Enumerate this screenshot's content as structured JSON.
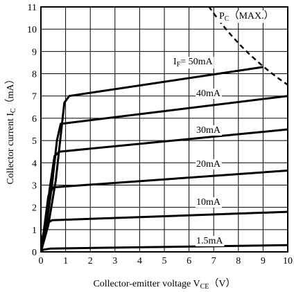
{
  "chart_data": {
    "type": "line",
    "xlabel": {
      "main": "Collector-emitter voltage V",
      "sub": "CE",
      "unit": "（V）"
    },
    "ylabel": {
      "main": "Collector current I",
      "sub": "C",
      "unit": "（mA）"
    },
    "xlim": [
      0,
      10
    ],
    "ylim": [
      0,
      11
    ],
    "xticks": [
      "0",
      "1",
      "2",
      "3",
      "4",
      "5",
      "6",
      "7",
      "8",
      "9",
      "10"
    ],
    "yticks": [
      "0",
      "1",
      "2",
      "3",
      "4",
      "5",
      "6",
      "7",
      "8",
      "9",
      "10",
      "11"
    ],
    "grid": true,
    "series": [
      {
        "name": "I_F = 50mA",
        "label_main": "I",
        "label_sub": "F",
        "label_rest": "= 50mA",
        "points": [
          [
            0,
            0
          ],
          [
            0.3,
            1.2
          ],
          [
            0.6,
            3.2
          ],
          [
            0.8,
            5.2
          ],
          [
            0.95,
            6.7
          ],
          [
            1.15,
            7.0
          ],
          [
            9,
            8.3
          ]
        ]
      },
      {
        "name": "40mA",
        "label_main": "40mA",
        "points": [
          [
            0,
            0
          ],
          [
            0.2,
            1.0
          ],
          [
            0.45,
            3.0
          ],
          [
            0.65,
            5.0
          ],
          [
            0.8,
            5.75
          ],
          [
            10,
            7.0
          ]
        ]
      },
      {
        "name": "30mA",
        "label_main": "30mA",
        "points": [
          [
            0,
            0
          ],
          [
            0.15,
            1.0
          ],
          [
            0.35,
            2.8
          ],
          [
            0.55,
            4.3
          ],
          [
            0.75,
            4.5
          ],
          [
            10,
            5.5
          ]
        ]
      },
      {
        "name": "20mA",
        "label_main": "20mA",
        "points": [
          [
            0,
            0
          ],
          [
            0.1,
            0.8
          ],
          [
            0.3,
            2.5
          ],
          [
            0.5,
            2.9
          ],
          [
            10,
            3.65
          ]
        ]
      },
      {
        "name": "10mA",
        "label_main": "10mA",
        "points": [
          [
            0,
            0
          ],
          [
            0.05,
            0.6
          ],
          [
            0.2,
            1.25
          ],
          [
            0.45,
            1.42
          ],
          [
            10,
            1.8
          ]
        ]
      },
      {
        "name": "1.5mA",
        "label_main": "1.5mA",
        "points": [
          [
            0,
            0
          ],
          [
            0.1,
            0.1
          ],
          [
            0.4,
            0.15
          ],
          [
            10,
            0.3
          ]
        ]
      }
    ],
    "limit_curve": {
      "name": "P_C (MAX.)",
      "label_main": "P",
      "label_sub": "C",
      "label_rest": "（MAX.）",
      "power_mW": 75,
      "x_range": [
        6.8,
        10
      ]
    }
  }
}
